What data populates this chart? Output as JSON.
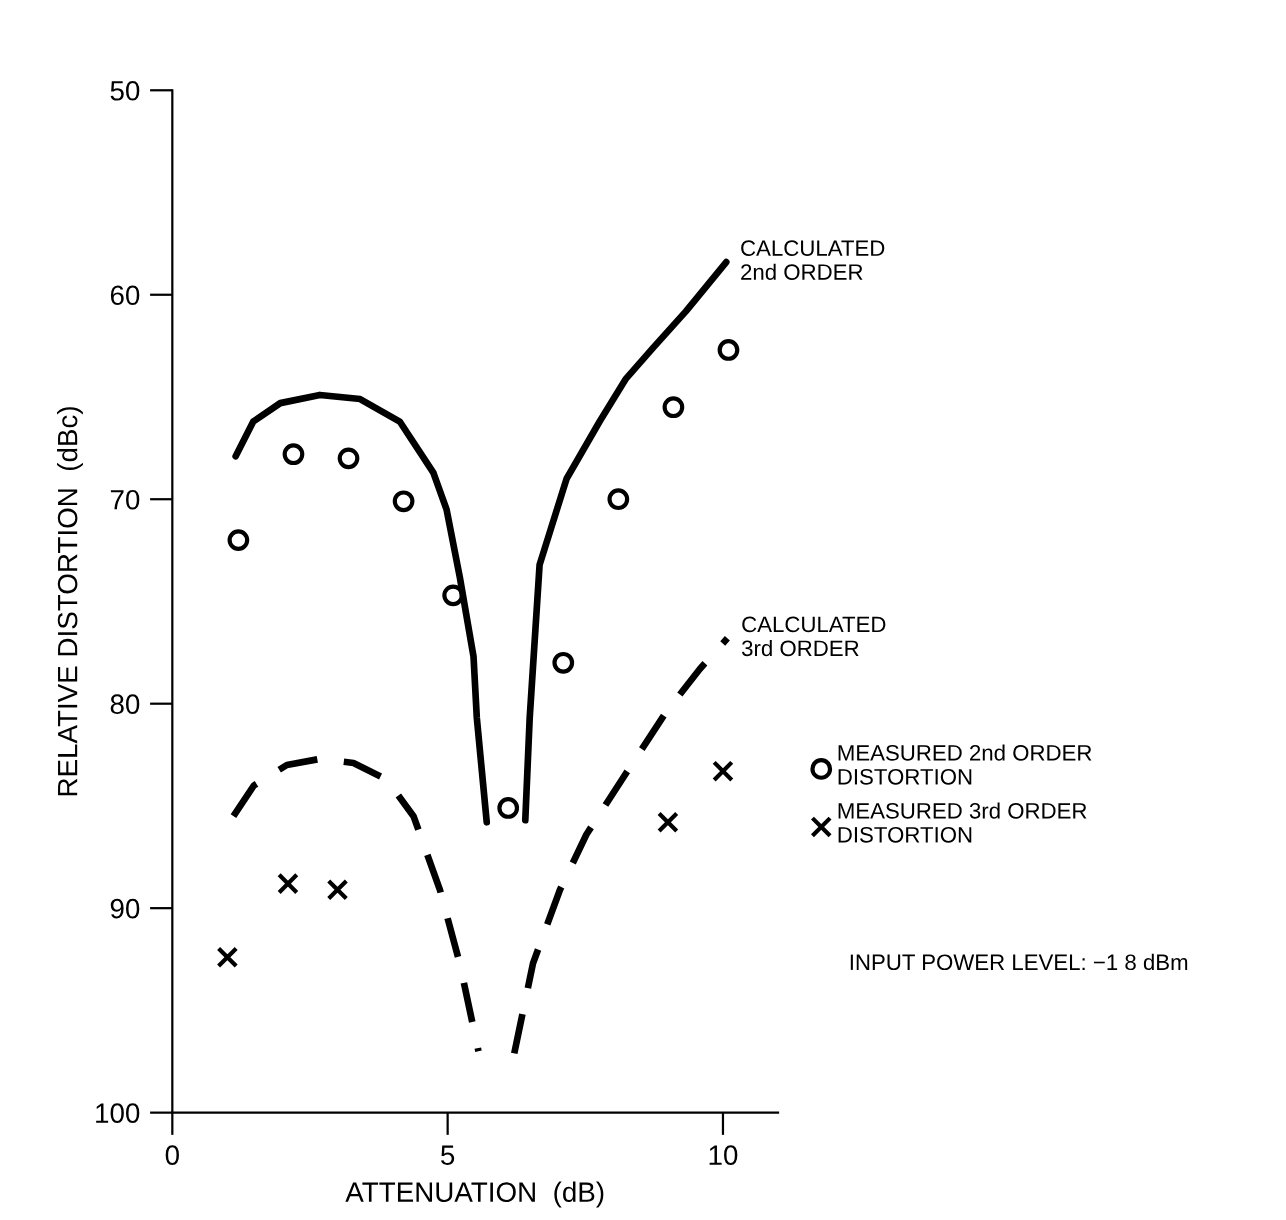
{
  "chart_data": {
    "type": "line",
    "xlabel": "ATTENUATION  (dB)",
    "ylabel": "RELATIVE DISTORTION  (dBc)",
    "xlim": [
      0,
      11
    ],
    "ylim": [
      100,
      50
    ],
    "xticks": [
      0,
      5,
      10
    ],
    "yticks": [
      50,
      60,
      70,
      80,
      90,
      100
    ],
    "grid": false,
    "legend": "right",
    "series": [
      {
        "name": "CALCULATED\n2nd ORDER",
        "line_style": "solid",
        "marker": "none",
        "color": "#000000",
        "x": [
          1.15,
          1.47,
          1.96,
          2.68,
          3.41,
          4.13,
          4.74,
          4.98,
          5.22,
          5.47,
          5.53,
          5.71,
          6.0,
          6.41,
          6.49,
          6.67,
          7.16,
          7.76,
          8.24,
          8.73,
          9.33,
          10.06
        ],
        "values": [
          67.9,
          66.2,
          65.3,
          64.9,
          65.1,
          66.2,
          68.7,
          70.5,
          73.8,
          77.7,
          80.7,
          85.8,
          null,
          85.7,
          80.7,
          73.2,
          69.0,
          66.2,
          64.1,
          62.6,
          60.8,
          58.4
        ]
      },
      {
        "name": "CALCULATED\n3rd ORDER",
        "line_style": "dashed",
        "marker": "none",
        "color": "#000000",
        "x": [
          1.11,
          1.48,
          2.08,
          2.68,
          3.29,
          3.89,
          4.38,
          4.86,
          5.22,
          5.56,
          5.9,
          6.21,
          6.55,
          7.04,
          7.52,
          8.24,
          8.97,
          9.58,
          10.08
        ],
        "values": [
          85.5,
          84.0,
          83.0,
          82.7,
          82.9,
          83.7,
          85.5,
          89.1,
          92.7,
          97.0,
          null,
          97.1,
          92.7,
          89.1,
          86.4,
          83.4,
          80.4,
          78.3,
          76.8
        ]
      },
      {
        "name": "MEASURED 2nd ORDER\nDISTORTION",
        "type": "scatter",
        "marker": "circle",
        "color": "#000000",
        "x": [
          1.2,
          2.2,
          3.2,
          4.2,
          5.1,
          6.1,
          7.1,
          8.1,
          9.1,
          10.1
        ],
        "values": [
          72.0,
          67.8,
          68.0,
          70.1,
          74.7,
          85.1,
          78.0,
          70.0,
          65.5,
          62.7
        ]
      },
      {
        "name": "MEASURED 3rd ORDER\nDISTORTION",
        "type": "scatter",
        "marker": "cross",
        "color": "#000000",
        "x": [
          1.0,
          2.1,
          3.0,
          9.0,
          10.0
        ],
        "values": [
          92.4,
          88.8,
          89.1,
          85.8,
          83.3
        ]
      }
    ],
    "annotations": [
      "INPUT POWER LEVEL: −1 8 dBm"
    ]
  }
}
